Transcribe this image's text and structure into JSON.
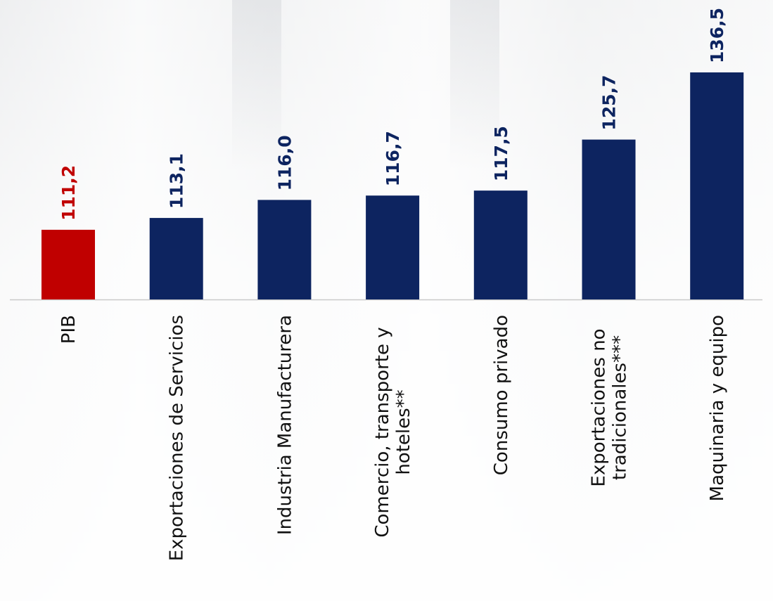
{
  "chart_data": {
    "type": "bar",
    "title": "",
    "xlabel": "",
    "ylabel": "",
    "ylim": [
      100,
      140
    ],
    "grid": false,
    "legend": "none",
    "categories": [
      [
        "PIB"
      ],
      [
        "Exportaciones de Servicios"
      ],
      [
        "Industria Manufacturera"
      ],
      [
        "Comercio, transporte y",
        "hoteles**"
      ],
      [
        "Consumo privado"
      ],
      [
        "Exportaciones no",
        "tradicionales***"
      ],
      [
        "Maquinaria y equipo"
      ]
    ],
    "values": [
      111.2,
      113.1,
      116.0,
      116.7,
      117.5,
      125.7,
      136.5
    ],
    "value_labels": [
      "111,2",
      "113,1",
      "116,0",
      "116,7",
      "117,5",
      "125,7",
      "136,5"
    ],
    "bar_colors": [
      "#c00000",
      "#0d2460",
      "#0d2460",
      "#0d2460",
      "#0d2460",
      "#0d2460",
      "#0d2460"
    ],
    "colors": {
      "highlight": "#c00000",
      "primary": "#0d2460",
      "axis": "#c9c9c9",
      "category_text": "#111111"
    }
  }
}
